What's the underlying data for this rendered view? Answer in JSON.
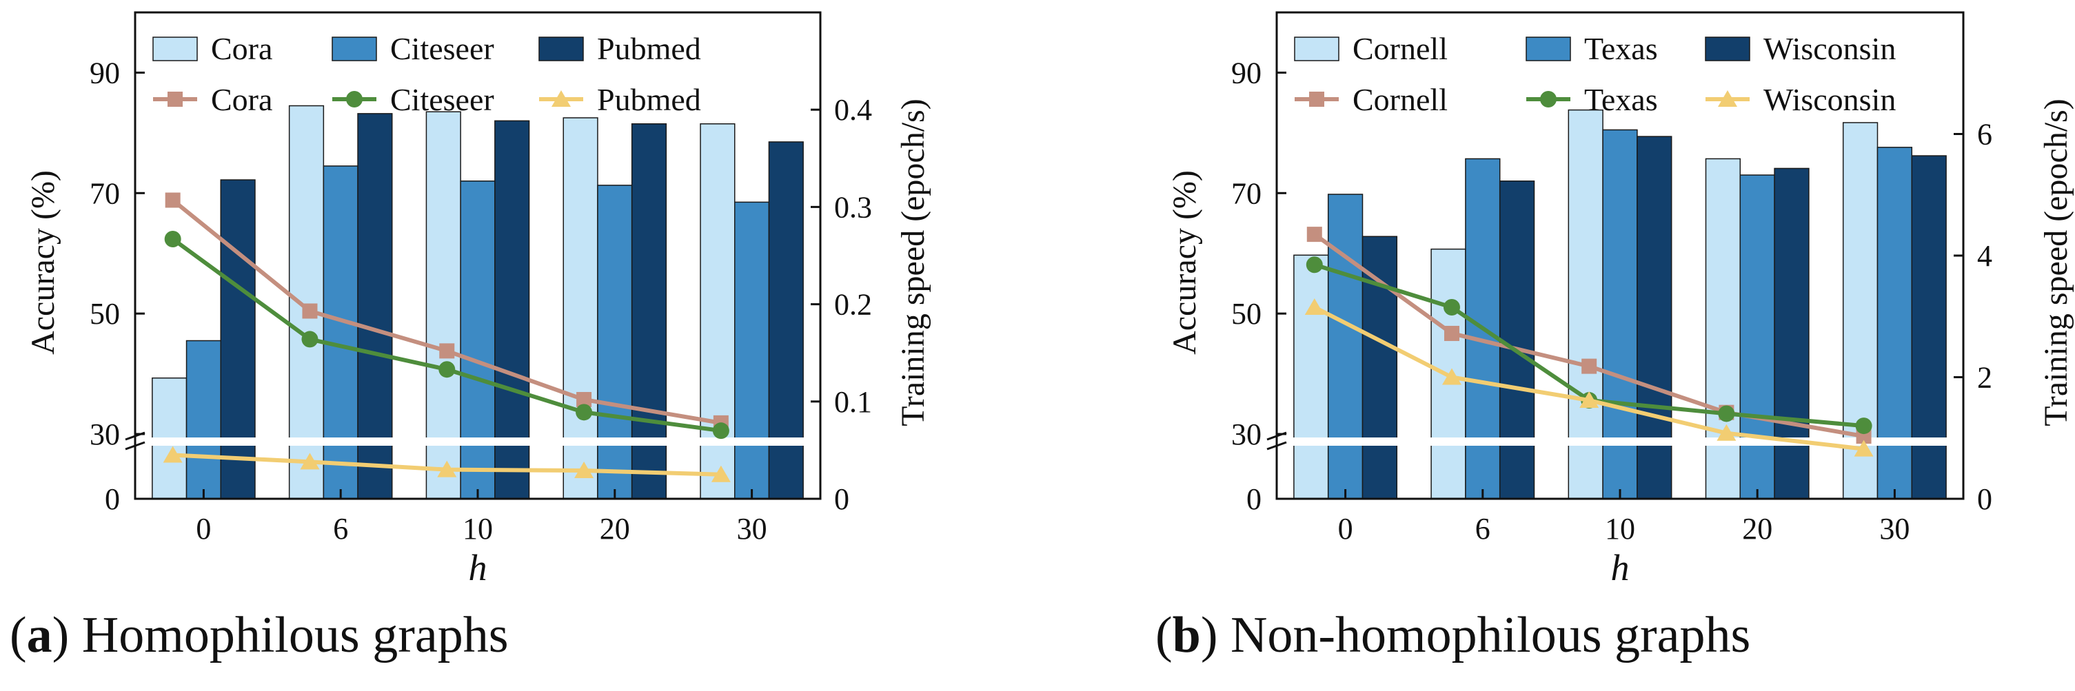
{
  "chart_data": [
    {
      "type": "bar+line",
      "panel_letter": "a",
      "caption": "Homophilous graphs",
      "categories": [
        "0",
        "6",
        "10",
        "20",
        "30"
      ],
      "xlabel": "h",
      "ylabel_left": "Accuracy (%)",
      "ylabel_right": "Training speed (epoch/s)",
      "ylim_left": [
        0,
        100
      ],
      "yticks_left": [
        {
          "value": 0,
          "label": "0"
        },
        {
          "value": 30,
          "label": "30"
        },
        {
          "value": 50,
          "label": "50"
        },
        {
          "value": 70,
          "label": "70"
        },
        {
          "value": 90,
          "label": "90"
        }
      ],
      "ylim_right": [
        0,
        0.5
      ],
      "yticks_right": [
        {
          "value": 0,
          "label": "0"
        },
        {
          "value": 0.1,
          "label": "0.1"
        },
        {
          "value": 0.2,
          "label": "0.2"
        },
        {
          "value": 0.3,
          "label": "0.3"
        },
        {
          "value": 0.4,
          "label": "0.4"
        }
      ],
      "axis_break_at": 30,
      "legend_position": "top",
      "bar_series": [
        {
          "name": "Cora",
          "color": "#c4e4f7",
          "values": [
            39.3,
            84.5,
            83.5,
            82.5,
            81.5
          ]
        },
        {
          "name": "Citeseer",
          "color": "#3d8ac4",
          "values": [
            45.5,
            74.5,
            72.0,
            71.3,
            68.5
          ]
        },
        {
          "name": "Pubmed",
          "color": "#123f6b",
          "values": [
            72.2,
            83.2,
            82.0,
            81.5,
            78.5
          ]
        }
      ],
      "line_series": [
        {
          "name": "Cora",
          "color": "#c48f7f",
          "marker": "square",
          "values": [
            0.307,
            0.193,
            0.152,
            0.102,
            0.078
          ]
        },
        {
          "name": "Citeseer",
          "color": "#4e8d3c",
          "marker": "circle",
          "values": [
            0.267,
            0.164,
            0.133,
            0.089,
            0.07
          ]
        },
        {
          "name": "Pubmed",
          "color": "#f2cd72",
          "marker": "triangle",
          "values": [
            0.045,
            0.038,
            0.03,
            0.029,
            0.025
          ]
        }
      ]
    },
    {
      "type": "bar+line",
      "panel_letter": "b",
      "caption": "Non-homophilous graphs",
      "categories": [
        "0",
        "6",
        "10",
        "20",
        "30"
      ],
      "xlabel": "h",
      "ylabel_left": "Accuracy (%)",
      "ylabel_right": "Training speed (epoch/s)",
      "ylim_left": [
        0,
        100
      ],
      "yticks_left": [
        {
          "value": 0,
          "label": "0"
        },
        {
          "value": 30,
          "label": "30"
        },
        {
          "value": 50,
          "label": "50"
        },
        {
          "value": 70,
          "label": "70"
        },
        {
          "value": 90,
          "label": "90"
        }
      ],
      "ylim_right": [
        0,
        8
      ],
      "yticks_right": [
        {
          "value": 0,
          "label": "0"
        },
        {
          "value": 2,
          "label": "2"
        },
        {
          "value": 4,
          "label": "4"
        },
        {
          "value": 6,
          "label": "6"
        }
      ],
      "axis_break_at": 30,
      "legend_position": "top",
      "bar_series": [
        {
          "name": "Cornell",
          "color": "#c4e4f7",
          "values": [
            59.7,
            60.7,
            83.8,
            75.7,
            81.7
          ]
        },
        {
          "name": "Texas",
          "color": "#3d8ac4",
          "values": [
            69.8,
            75.7,
            80.5,
            73.0,
            77.6
          ]
        },
        {
          "name": "Wisconsin",
          "color": "#123f6b",
          "values": [
            62.8,
            72.0,
            79.4,
            74.1,
            76.2
          ]
        }
      ],
      "line_series": [
        {
          "name": "Cornell",
          "color": "#c48f7f",
          "marker": "square",
          "values": [
            4.35,
            2.72,
            2.18,
            1.42,
            1.03
          ]
        },
        {
          "name": "Texas",
          "color": "#4e8d3c",
          "marker": "circle",
          "values": [
            3.85,
            3.15,
            1.62,
            1.4,
            1.2
          ]
        },
        {
          "name": "Wisconsin",
          "color": "#f2cd72",
          "marker": "triangle",
          "values": [
            3.15,
            2.0,
            1.62,
            1.08,
            0.82
          ]
        }
      ]
    }
  ]
}
